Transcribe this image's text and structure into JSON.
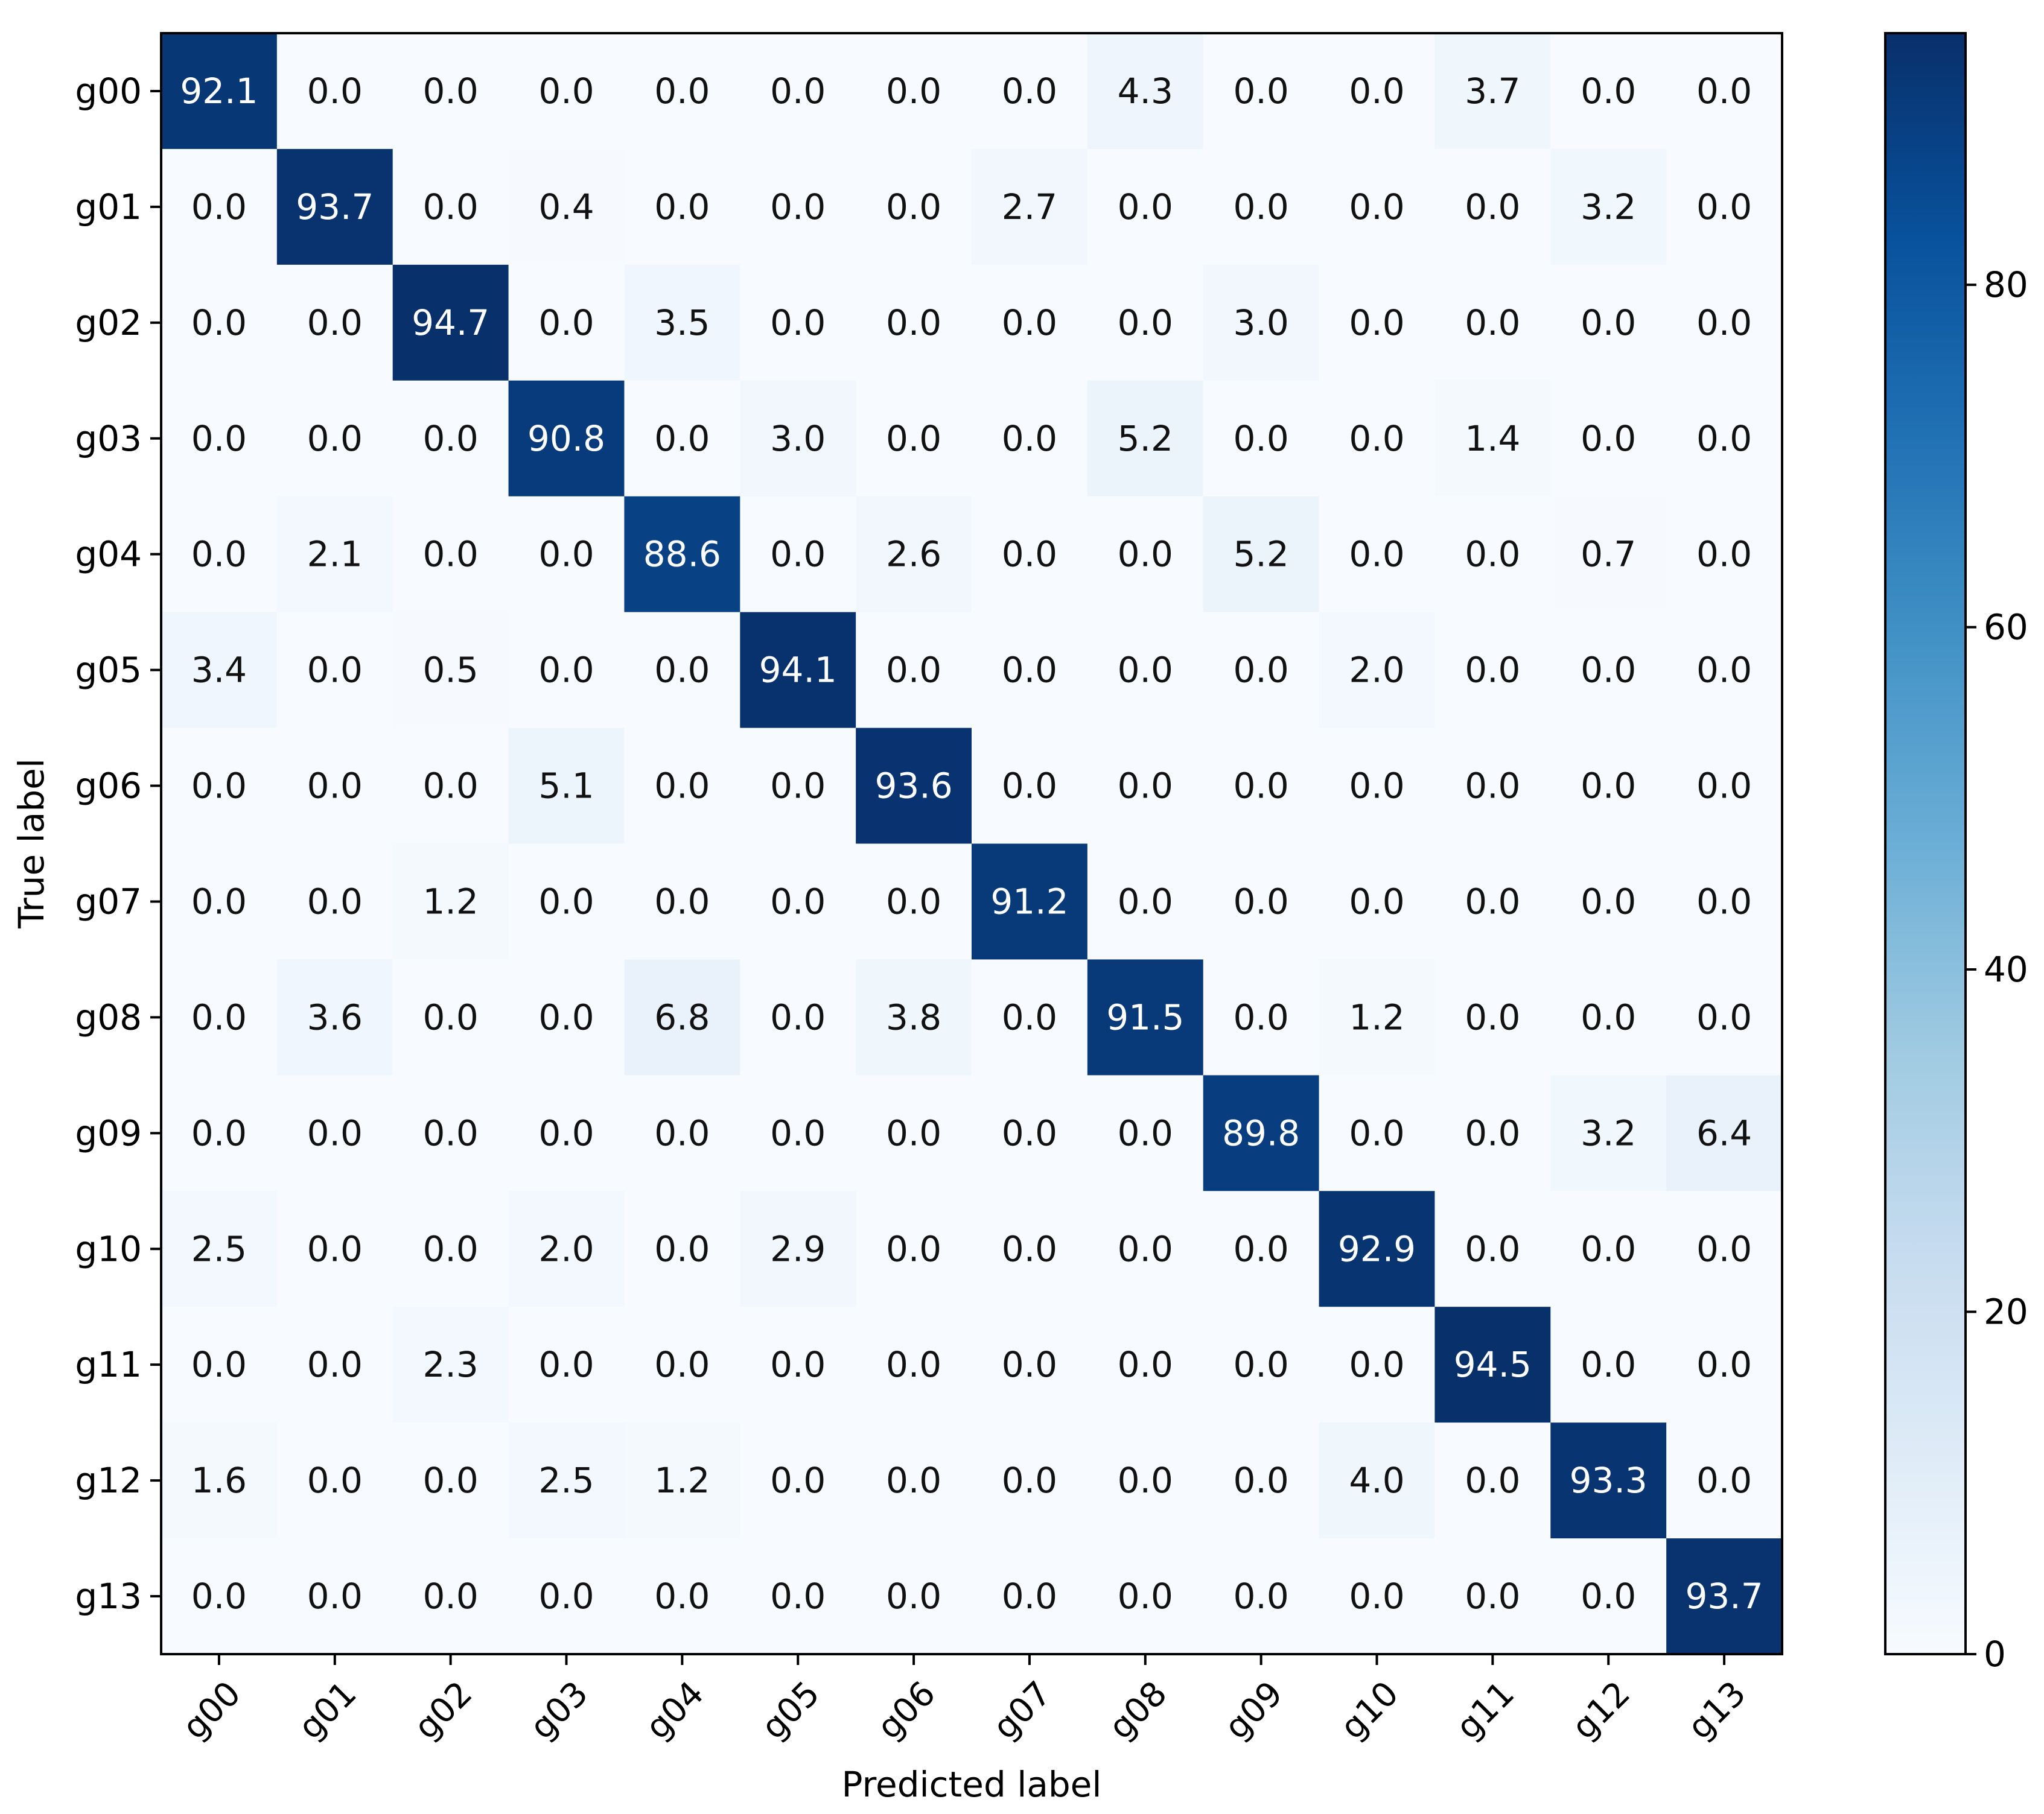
{
  "chart_data": {
    "type": "heatmap",
    "title": "",
    "xlabel": "Predicted label",
    "ylabel": "True label",
    "x_categories": [
      "g00",
      "g01",
      "g02",
      "g03",
      "g04",
      "g05",
      "g06",
      "g07",
      "g08",
      "g09",
      "g10",
      "g11",
      "g12",
      "g13"
    ],
    "y_categories": [
      "g00",
      "g01",
      "g02",
      "g03",
      "g04",
      "g05",
      "g06",
      "g07",
      "g08",
      "g09",
      "g10",
      "g11",
      "g12",
      "g13"
    ],
    "values": [
      [
        92.1,
        0.0,
        0.0,
        0.0,
        0.0,
        0.0,
        0.0,
        0.0,
        4.3,
        0.0,
        0.0,
        3.7,
        0.0,
        0.0
      ],
      [
        0.0,
        93.7,
        0.0,
        0.4,
        0.0,
        0.0,
        0.0,
        2.7,
        0.0,
        0.0,
        0.0,
        0.0,
        3.2,
        0.0
      ],
      [
        0.0,
        0.0,
        94.7,
        0.0,
        3.5,
        0.0,
        0.0,
        0.0,
        0.0,
        3.0,
        0.0,
        0.0,
        0.0,
        0.0
      ],
      [
        0.0,
        0.0,
        0.0,
        90.8,
        0.0,
        3.0,
        0.0,
        0.0,
        5.2,
        0.0,
        0.0,
        1.4,
        0.0,
        0.0
      ],
      [
        0.0,
        2.1,
        0.0,
        0.0,
        88.6,
        0.0,
        2.6,
        0.0,
        0.0,
        5.2,
        0.0,
        0.0,
        0.7,
        0.0
      ],
      [
        3.4,
        0.0,
        0.5,
        0.0,
        0.0,
        94.1,
        0.0,
        0.0,
        0.0,
        0.0,
        2.0,
        0.0,
        0.0,
        0.0
      ],
      [
        0.0,
        0.0,
        0.0,
        5.1,
        0.0,
        0.0,
        93.6,
        0.0,
        0.0,
        0.0,
        0.0,
        0.0,
        0.0,
        0.0
      ],
      [
        0.0,
        0.0,
        1.2,
        0.0,
        0.0,
        0.0,
        0.0,
        91.2,
        0.0,
        0.0,
        0.0,
        0.0,
        0.0,
        0.0
      ],
      [
        0.0,
        3.6,
        0.0,
        0.0,
        6.8,
        0.0,
        3.8,
        0.0,
        91.5,
        0.0,
        1.2,
        0.0,
        0.0,
        0.0
      ],
      [
        0.0,
        0.0,
        0.0,
        0.0,
        0.0,
        0.0,
        0.0,
        0.0,
        0.0,
        89.8,
        0.0,
        0.0,
        3.2,
        6.4
      ],
      [
        2.5,
        0.0,
        0.0,
        2.0,
        0.0,
        2.9,
        0.0,
        0.0,
        0.0,
        0.0,
        92.9,
        0.0,
        0.0,
        0.0
      ],
      [
        0.0,
        0.0,
        2.3,
        0.0,
        0.0,
        0.0,
        0.0,
        0.0,
        0.0,
        0.0,
        0.0,
        94.5,
        0.0,
        0.0
      ],
      [
        1.6,
        0.0,
        0.0,
        2.5,
        1.2,
        0.0,
        0.0,
        0.0,
        0.0,
        0.0,
        4.0,
        0.0,
        93.3,
        0.0
      ],
      [
        0.0,
        0.0,
        0.0,
        0.0,
        0.0,
        0.0,
        0.0,
        0.0,
        0.0,
        0.0,
        0.0,
        0.0,
        0.0,
        93.7
      ]
    ],
    "colormap": "Blues",
    "colorbar": {
      "min": 0,
      "max": 94.7,
      "ticks": [
        0,
        20,
        40,
        60,
        80
      ]
    },
    "value_format": "0.0",
    "grid": false,
    "legend": "colorbar-right",
    "colors": {
      "low": "#f7fbff",
      "high": "#08306b",
      "text_dark": "#111111",
      "text_light": "#ffffff"
    }
  }
}
